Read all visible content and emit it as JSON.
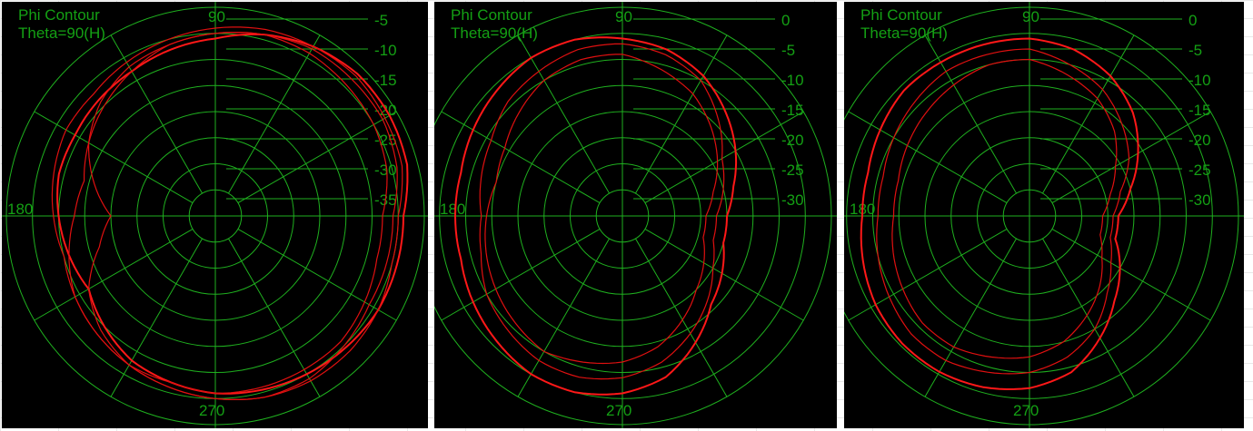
{
  "colors": {
    "grid": "#1fb01f",
    "text": "#14a014",
    "trace": "#e01010",
    "background": "#000000"
  },
  "chart_data": [
    {
      "type": "polar-line",
      "title": "Phi Contour",
      "subtitle": "Theta=90(H)",
      "angle_labels": [
        "90",
        "180",
        "270"
      ],
      "radial_ticks": [
        "-5",
        "-10",
        "-15",
        "-20",
        "-25",
        "-30",
        "-35"
      ],
      "rlim": [
        -40,
        0
      ],
      "grid": true,
      "series": [
        {
          "values": [
            -4,
            -2,
            -1.5,
            -1.5,
            -2.5,
            -4,
            -6,
            -7,
            -8,
            -8.5,
            -9,
            -9,
            -10,
            -11,
            -12,
            -10,
            -8,
            -7,
            -6,
            -5.5,
            -5,
            -4.5,
            -4,
            -4
          ]
        },
        {
          "values": [
            -6,
            -4,
            -3,
            -3,
            -3,
            -4,
            -5,
            -6,
            -7,
            -9,
            -12,
            -16,
            -20,
            -17,
            -12,
            -9,
            -7,
            -6,
            -5,
            -4,
            -4,
            -5,
            -6,
            -6
          ]
        },
        {
          "values": [
            -5,
            -3,
            -2.5,
            -2,
            -2.5,
            -3,
            -4,
            -5,
            -6,
            -7,
            -7,
            -8,
            -9,
            -10,
            -9,
            -8,
            -7,
            -6,
            -5,
            -4,
            -3.5,
            -3.5,
            -4,
            -5
          ]
        },
        {
          "values": [
            -8,
            -6,
            -5,
            -4.5,
            -4,
            -4,
            -5,
            -6,
            -8,
            -10,
            -12,
            -14,
            -13,
            -11,
            -9,
            -8,
            -7,
            -7,
            -6,
            -6,
            -6,
            -6,
            -7,
            -8
          ]
        }
      ]
    },
    {
      "type": "polar-line",
      "title": "Phi Contour",
      "subtitle": "Theta=90(H)",
      "angle_labels": [
        "90",
        "180",
        "270"
      ],
      "radial_ticks": [
        "0",
        "-5",
        "-10",
        "-15",
        "-20",
        "-25",
        "-30"
      ],
      "rlim": [
        -40,
        0
      ],
      "grid": true,
      "series": [
        {
          "values": [
            -20,
            -18,
            -15,
            -12,
            -9,
            -7,
            -6,
            -5,
            -5,
            -6,
            -7,
            -8,
            -8,
            -8,
            -7,
            -6,
            -5,
            -5,
            -6,
            -8,
            -12,
            -16,
            -18,
            -20
          ]
        },
        {
          "values": [
            -22,
            -20,
            -18,
            -14,
            -10,
            -8,
            -7,
            -7,
            -8,
            -9,
            -11,
            -12,
            -13,
            -12,
            -10,
            -9,
            -8,
            -8,
            -9,
            -11,
            -14,
            -17,
            -20,
            -22
          ]
        },
        {
          "values": [
            -24,
            -22,
            -19,
            -16,
            -13,
            -11,
            -9,
            -9,
            -10,
            -12,
            -14,
            -15,
            -14,
            -13,
            -12,
            -11,
            -10,
            -11,
            -12,
            -14,
            -17,
            -20,
            -22,
            -24
          ]
        }
      ]
    },
    {
      "type": "polar-line",
      "title": "Phi Contour",
      "subtitle": "Theta=90(H)",
      "angle_labels": [
        "90",
        "180",
        "270"
      ],
      "radial_ticks": [
        "0",
        "-5",
        "-10",
        "-15",
        "-20",
        "-25",
        "-30"
      ],
      "rlim": [
        -40,
        0
      ],
      "grid": true,
      "series": [
        {
          "values": [
            -23,
            -20,
            -16,
            -12,
            -9,
            -7,
            -6,
            -6,
            -6,
            -6,
            -7,
            -8,
            -8,
            -7,
            -6,
            -5.5,
            -5.5,
            -6,
            -7,
            -9,
            -13,
            -17,
            -20,
            -23
          ]
        },
        {
          "values": [
            -24,
            -22,
            -18,
            -15,
            -12,
            -10,
            -8,
            -8,
            -8,
            -9,
            -10,
            -11,
            -11,
            -10,
            -9,
            -8,
            -8,
            -9,
            -10,
            -12,
            -15,
            -19,
            -22,
            -24
          ]
        },
        {
          "values": [
            -26,
            -24,
            -21,
            -17,
            -14,
            -12,
            -10,
            -10,
            -11,
            -12,
            -13,
            -14,
            -14,
            -13,
            -12,
            -11,
            -11,
            -12,
            -13,
            -15,
            -18,
            -21,
            -24,
            -26
          ]
        }
      ]
    }
  ]
}
